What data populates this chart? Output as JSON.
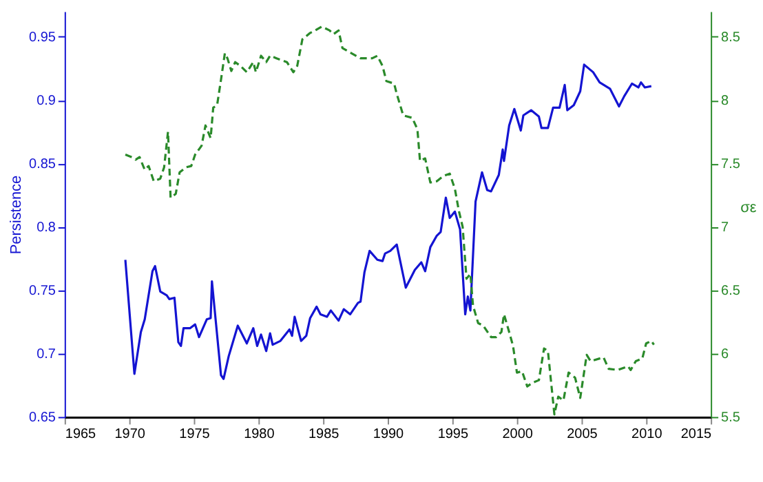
{
  "chart_data": {
    "type": "line",
    "ylabel": "Persistence",
    "y2label": "σε",
    "xlim": [
      1965,
      2015
    ],
    "xticks": [
      1965,
      1970,
      1975,
      1980,
      1985,
      1990,
      1995,
      2000,
      2005,
      2010,
      2015
    ],
    "ylim": [
      0.65,
      0.97
    ],
    "yticks": [
      0.65,
      0.7,
      0.75,
      0.8,
      0.85,
      0.9,
      0.95
    ],
    "y2lim": [
      5.5,
      8.7
    ],
    "y2ticks": [
      5.5,
      6,
      6.5,
      7,
      7.5,
      8,
      8.5
    ],
    "grid": false,
    "series": [
      {
        "color": "#1414d2",
        "line_style": "solid",
        "x": [
          1969.7,
          1970.4,
          1970.9,
          1971.2,
          1971.8,
          1972.0,
          1972.4,
          1972.9,
          1973.1,
          1973.5,
          1973.8,
          1974.0,
          1974.2,
          1974.7,
          1975.1,
          1975.4,
          1976.0,
          1976.3,
          1976.4,
          1977.1,
          1977.3,
          1977.7,
          1978.4,
          1978.7,
          1979.1,
          1979.6,
          1979.9,
          1980.2,
          1980.6,
          1980.9,
          1981.1,
          1981.7,
          1982.4,
          1982.6,
          1982.8,
          1983.3,
          1983.7,
          1984.0,
          1984.5,
          1984.8,
          1985.3,
          1985.6,
          1986.2,
          1986.6,
          1987.1,
          1987.7,
          1987.9,
          1988.2,
          1988.6,
          1989.2,
          1989.6,
          1989.8,
          1990.2,
          1990.7,
          1991.4,
          1992.1,
          1992.6,
          1992.9,
          1993.3,
          1993.8,
          1994.1,
          1994.5,
          1994.8,
          1995.2,
          1995.6,
          1996.0,
          1996.2,
          1996.4,
          1996.8,
          1997.3,
          1997.7,
          1998.0,
          1998.6,
          1998.9,
          1999.0,
          1999.4,
          1999.8,
          2000.3,
          2000.5,
          2001.1,
          2001.7,
          2001.9,
          2002.4,
          2002.8,
          2003.3,
          2003.7,
          2003.9,
          2004.4,
          2004.9,
          2005.2,
          2005.9,
          2006.4,
          2007.2,
          2007.9,
          2008.3,
          2008.9,
          2009.4,
          2009.6,
          2009.9,
          2010.4
        ],
        "values": [
          0.774,
          0.684,
          0.717,
          0.727,
          0.765,
          0.769,
          0.749,
          0.746,
          0.743,
          0.744,
          0.709,
          0.706,
          0.72,
          0.72,
          0.723,
          0.713,
          0.727,
          0.728,
          0.757,
          0.683,
          0.68,
          0.698,
          0.722,
          0.716,
          0.708,
          0.72,
          0.706,
          0.715,
          0.702,
          0.716,
          0.707,
          0.71,
          0.719,
          0.714,
          0.729,
          0.71,
          0.714,
          0.728,
          0.737,
          0.731,
          0.729,
          0.734,
          0.726,
          0.735,
          0.731,
          0.74,
          0.741,
          0.764,
          0.781,
          0.774,
          0.773,
          0.779,
          0.781,
          0.786,
          0.752,
          0.766,
          0.772,
          0.765,
          0.784,
          0.793,
          0.796,
          0.823,
          0.807,
          0.812,
          0.798,
          0.731,
          0.745,
          0.734,
          0.82,
          0.843,
          0.829,
          0.828,
          0.841,
          0.861,
          0.852,
          0.88,
          0.893,
          0.876,
          0.888,
          0.892,
          0.887,
          0.878,
          0.878,
          0.894,
          0.894,
          0.912,
          0.892,
          0.896,
          0.907,
          0.928,
          0.922,
          0.914,
          0.909,
          0.895,
          0.903,
          0.913,
          0.91,
          0.914,
          0.91,
          0.911
        ]
      },
      {
        "color": "#2a8a2a",
        "line_style": "dashed",
        "axis": "y2",
        "x": [
          1969.7,
          1970.2,
          1970.5,
          1970.8,
          1971.2,
          1971.5,
          1971.9,
          1972.4,
          1972.7,
          1973.0,
          1973.2,
          1973.6,
          1973.9,
          1974.4,
          1974.8,
          1975.1,
          1975.6,
          1975.9,
          1976.3,
          1976.5,
          1976.8,
          1977.1,
          1977.4,
          1977.6,
          1977.9,
          1978.2,
          1978.6,
          1979.1,
          1979.6,
          1979.8,
          1980.2,
          1980.6,
          1980.9,
          1981.4,
          1982.2,
          1982.7,
          1983.0,
          1983.4,
          1984.0,
          1984.4,
          1984.9,
          1985.5,
          1985.8,
          1986.2,
          1986.5,
          1987.2,
          1987.9,
          1988.8,
          1989.2,
          1989.6,
          1989.9,
          1990.5,
          1990.7,
          1991.2,
          1991.9,
          1992.3,
          1992.5,
          1992.9,
          1993.3,
          1993.8,
          1994.3,
          1994.8,
          1995.2,
          1995.5,
          1995.8,
          1996.1,
          1996.4,
          1996.6,
          1997.0,
          1997.4,
          1998.0,
          1998.4,
          1998.8,
          1999.0,
          1999.4,
          1999.7,
          2000.0,
          2000.4,
          2000.8,
          2001.2,
          2001.7,
          2002.1,
          2002.4,
          2002.9,
          2003.2,
          2003.6,
          2004.0,
          2004.5,
          2004.9,
          2005.4,
          2005.7,
          2006.7,
          2007.1,
          2007.8,
          2008.6,
          2008.8,
          2009.2,
          2009.7,
          2010.0,
          2010.4,
          2010.6
        ],
        "values": [
          7.57,
          7.55,
          7.53,
          7.55,
          7.45,
          7.48,
          7.36,
          7.38,
          7.47,
          7.75,
          7.23,
          7.26,
          7.43,
          7.47,
          7.48,
          7.57,
          7.64,
          7.8,
          7.7,
          7.94,
          7.96,
          8.16,
          8.37,
          8.33,
          8.23,
          8.3,
          8.27,
          8.22,
          8.3,
          8.22,
          8.35,
          8.3,
          8.35,
          8.33,
          8.3,
          8.22,
          8.27,
          8.48,
          8.53,
          8.55,
          8.58,
          8.55,
          8.52,
          8.55,
          8.41,
          8.37,
          8.33,
          8.33,
          8.35,
          8.27,
          8.15,
          8.13,
          8.05,
          7.88,
          7.86,
          7.77,
          7.52,
          7.54,
          7.35,
          7.36,
          7.4,
          7.42,
          7.3,
          7.13,
          7.0,
          6.59,
          6.63,
          6.38,
          6.24,
          6.22,
          6.13,
          6.13,
          6.17,
          6.31,
          6.17,
          6.06,
          5.85,
          5.86,
          5.74,
          5.77,
          5.79,
          6.04,
          6.02,
          5.52,
          5.66,
          5.63,
          5.85,
          5.81,
          5.65,
          5.99,
          5.94,
          5.97,
          5.88,
          5.87,
          5.9,
          5.87,
          5.94,
          5.96,
          6.08,
          6.1,
          6.07
        ]
      }
    ]
  }
}
